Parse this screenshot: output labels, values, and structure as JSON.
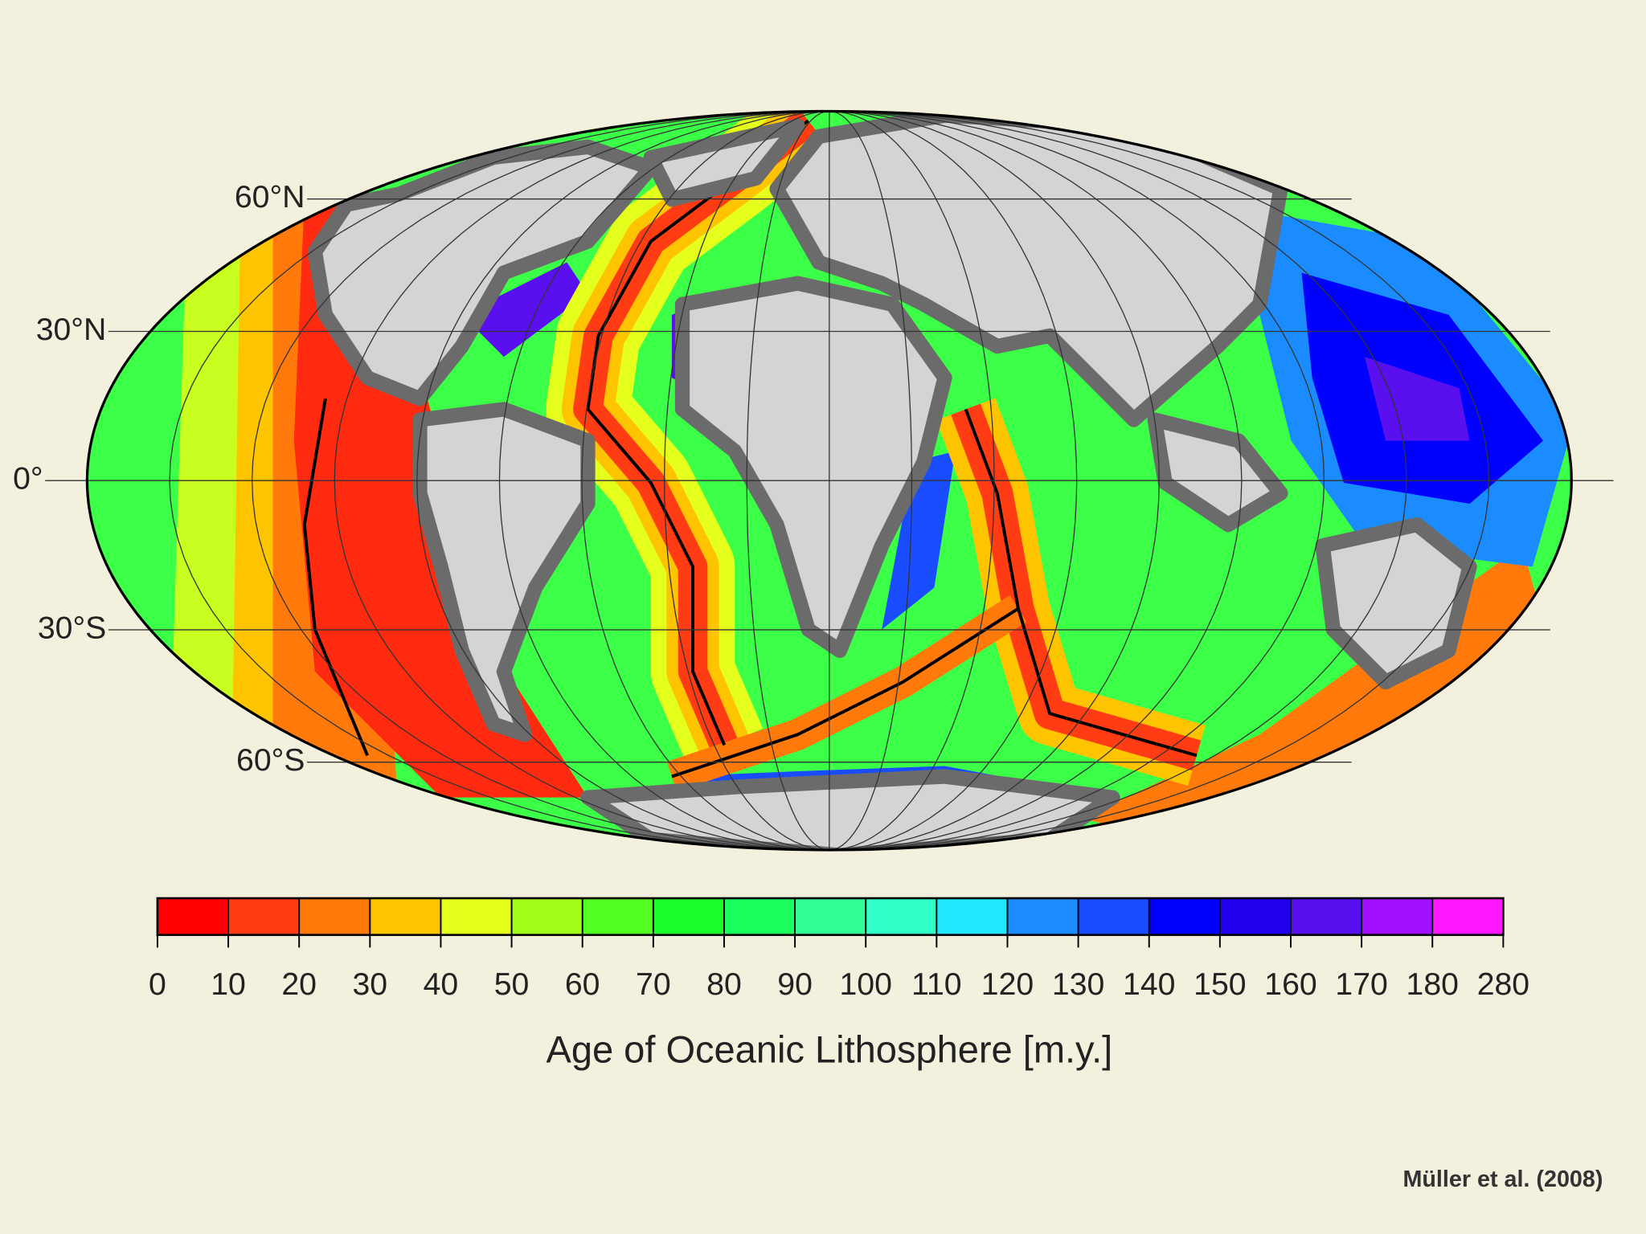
{
  "map": {
    "title": "Age of Oceanic Lithosphere [m.y.]",
    "credit": "Müller et al. (2008)",
    "latitudes": [
      {
        "value": 60,
        "label": "60°N"
      },
      {
        "value": 30,
        "label": "30°N"
      },
      {
        "value": 0,
        "label": "0°"
      },
      {
        "value": -30,
        "label": "30°S"
      },
      {
        "value": -60,
        "label": "60°S"
      }
    ],
    "colorbar": {
      "ticks": [
        0,
        10,
        20,
        30,
        40,
        50,
        60,
        70,
        80,
        90,
        100,
        110,
        120,
        130,
        140,
        150,
        160,
        170,
        180,
        280
      ],
      "colors": [
        "#ff0000",
        "#ff3c14",
        "#ff7a0a",
        "#ffc400",
        "#e4ff1c",
        "#a2ff1c",
        "#52ff22",
        "#1cff2c",
        "#1cff5e",
        "#32ff98",
        "#30ffc8",
        "#20e6ff",
        "#1a8cff",
        "#1a4cff",
        "#0000ff",
        "#2200ee",
        "#5a10ee",
        "#a010ff",
        "#ff18ff"
      ]
    }
  }
}
